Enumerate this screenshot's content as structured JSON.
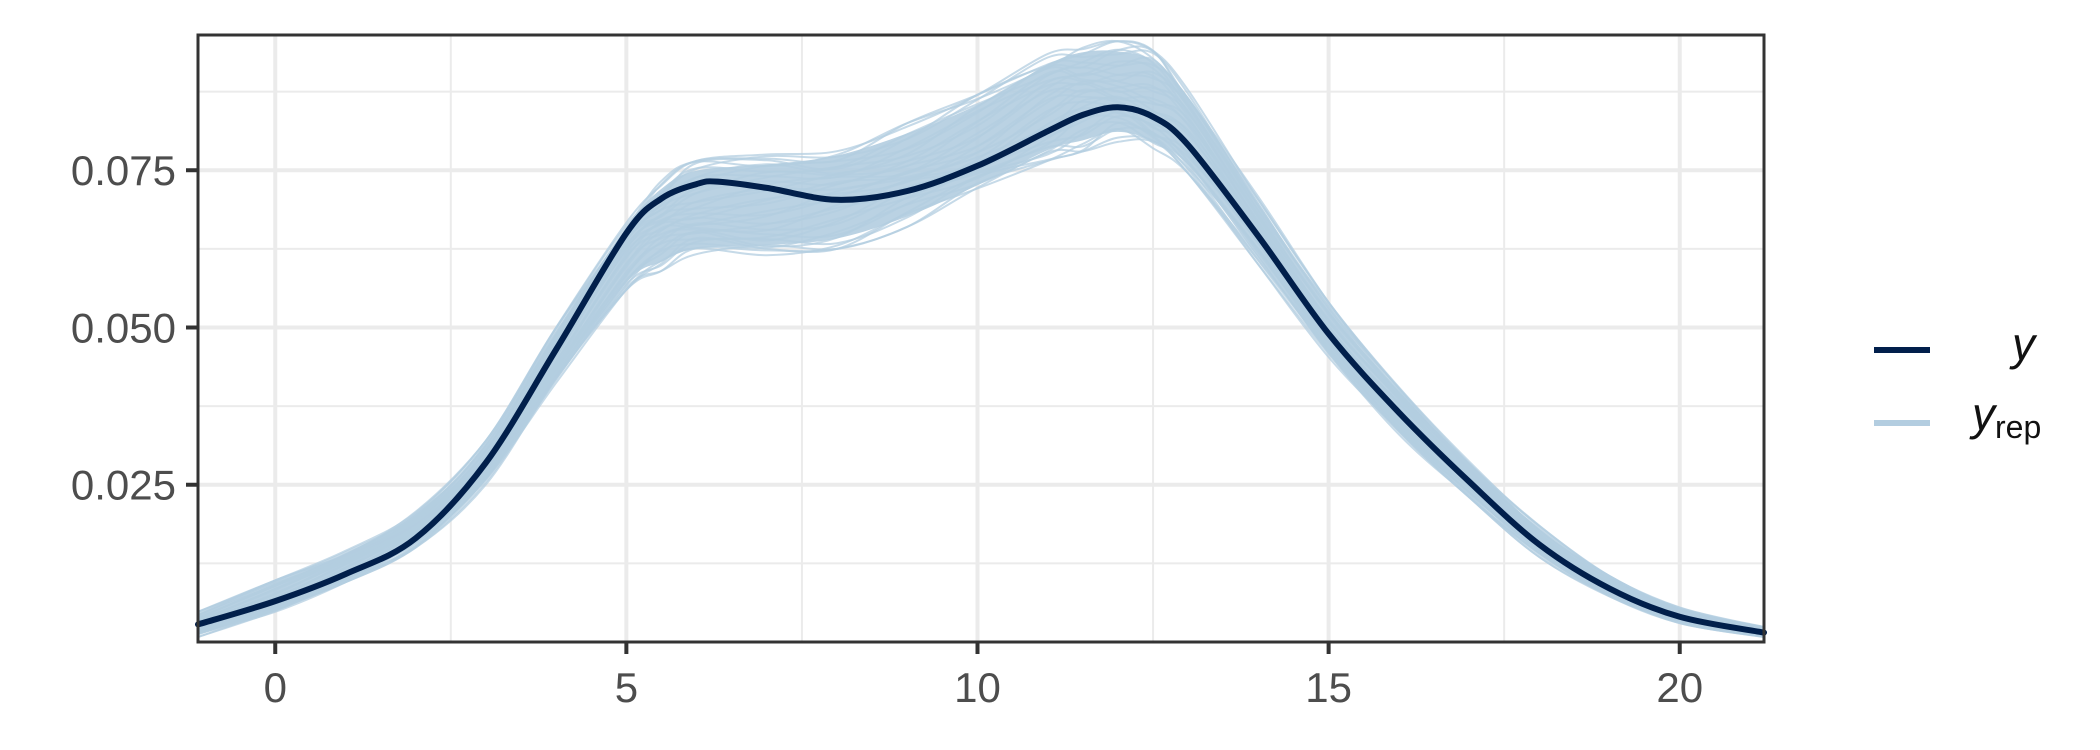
{
  "chart_data": {
    "type": "line",
    "title": "",
    "xlabel": "",
    "ylabel": "",
    "xlim": [
      -1.1,
      21.2
    ],
    "ylim": [
      0.0,
      0.0965
    ],
    "x_ticks": [
      0,
      5,
      10,
      15,
      20
    ],
    "x_tick_labels": [
      "0",
      "5",
      "10",
      "15",
      "20"
    ],
    "y_ticks": [
      0.025,
      0.05,
      0.075
    ],
    "y_tick_labels": [
      "0.025",
      "0.050",
      "0.075"
    ],
    "grid": true,
    "legend_position": "right",
    "legend": [
      {
        "label": "y",
        "subscript": "",
        "color": "#011f4b"
      },
      {
        "label": "y",
        "subscript": "rep",
        "color": "#b3cde0"
      }
    ],
    "colors": {
      "y": "#011f4b",
      "yrep": "#b3cde0",
      "grid": "#ebebeb",
      "panel_border": "#333333",
      "tick_text": "#4d4d4d"
    },
    "series": [
      {
        "name": "y",
        "x": [
          -1.1,
          0,
          1,
          2,
          3,
          4,
          5,
          5.5,
          6,
          6.3,
          7,
          8,
          9,
          10,
          11,
          11.5,
          12,
          12.5,
          13,
          14,
          15,
          16,
          17,
          18,
          19,
          20,
          21.2
        ],
        "y": [
          0.0028,
          0.0065,
          0.0108,
          0.0165,
          0.0285,
          0.0465,
          0.065,
          0.0705,
          0.0728,
          0.0732,
          0.0722,
          0.0703,
          0.0717,
          0.0757,
          0.0812,
          0.0838,
          0.085,
          0.0835,
          0.079,
          0.0645,
          0.049,
          0.0365,
          0.0255,
          0.0155,
          0.0085,
          0.004,
          0.0015
        ]
      }
    ],
    "yrep_band": {
      "name": "y_rep",
      "x": [
        -1.1,
        0,
        1,
        2,
        3,
        4,
        5,
        5.5,
        6,
        7,
        8,
        9,
        10,
        11,
        11.5,
        12,
        12.5,
        13,
        14,
        15,
        16,
        17,
        18,
        19,
        20,
        21.2
      ],
      "lower": [
        0.0008,
        0.0045,
        0.0095,
        0.015,
        0.025,
        0.041,
        0.056,
        0.059,
        0.061,
        0.0615,
        0.0625,
        0.066,
        0.071,
        0.0765,
        0.078,
        0.0795,
        0.078,
        0.0745,
        0.06,
        0.045,
        0.033,
        0.023,
        0.0135,
        0.007,
        0.003,
        0.0008
      ],
      "upper": [
        0.0048,
        0.0098,
        0.0145,
        0.021,
        0.032,
        0.05,
        0.067,
        0.0735,
        0.0765,
        0.0775,
        0.079,
        0.0825,
        0.087,
        0.0935,
        0.0955,
        0.0955,
        0.094,
        0.088,
        0.071,
        0.054,
        0.0405,
        0.029,
        0.0185,
        0.0105,
        0.0055,
        0.0025
      ]
    }
  }
}
